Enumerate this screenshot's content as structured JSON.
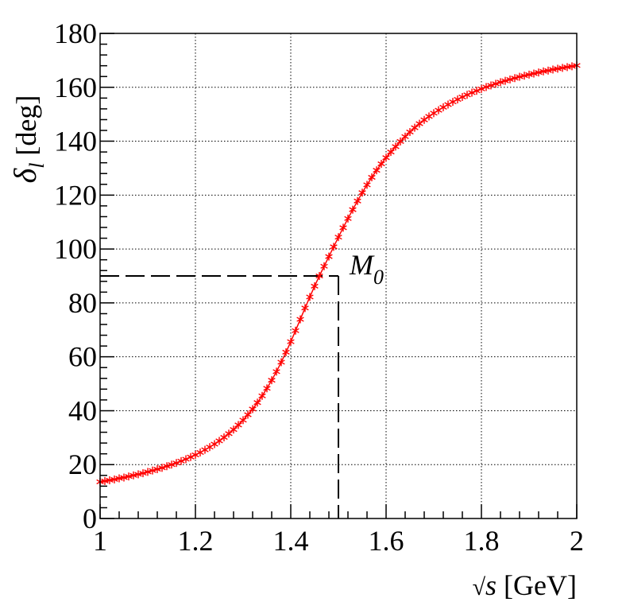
{
  "chart_data": {
    "type": "scatter",
    "title": "",
    "xlabel_parts": {
      "sqrt": "√",
      "var": "s",
      "unit": " [GeV]"
    },
    "ylabel_parts": {
      "delta": "δ",
      "sub": "l",
      "unit": " [deg]"
    },
    "xlim": [
      1,
      2
    ],
    "ylim": [
      0,
      180
    ],
    "x_ticks": [
      1,
      1.2,
      1.4,
      1.6,
      1.8,
      2
    ],
    "x_tick_labels": [
      "1",
      "1.2",
      "1.4",
      "1.6",
      "1.8",
      "2"
    ],
    "y_ticks": [
      0,
      20,
      40,
      60,
      80,
      100,
      120,
      140,
      160,
      180
    ],
    "y_tick_labels": [
      "0",
      "20",
      "40",
      "60",
      "80",
      "100",
      "120",
      "140",
      "160",
      "180"
    ],
    "grid": true,
    "marker": "asterisk",
    "marker_color": "#ff0000",
    "line_color": "#ff0000",
    "series": [
      {
        "x": [
          1.0,
          1.01,
          1.02,
          1.03,
          1.04,
          1.05,
          1.06,
          1.07,
          1.08,
          1.09,
          1.1,
          1.11,
          1.12,
          1.13,
          1.14,
          1.15,
          1.16,
          1.17,
          1.18,
          1.19,
          1.2,
          1.21,
          1.22,
          1.23,
          1.24,
          1.25,
          1.26,
          1.27,
          1.28,
          1.29,
          1.3,
          1.31,
          1.32,
          1.33,
          1.34,
          1.35,
          1.36,
          1.37,
          1.38,
          1.39,
          1.4,
          1.41,
          1.42,
          1.43,
          1.44,
          1.45,
          1.46,
          1.47,
          1.48,
          1.49,
          1.5,
          1.51,
          1.52,
          1.53,
          1.54,
          1.55,
          1.56,
          1.57,
          1.58,
          1.59,
          1.6,
          1.61,
          1.62,
          1.63,
          1.64,
          1.65,
          1.66,
          1.67,
          1.68,
          1.69,
          1.7,
          1.71,
          1.72,
          1.73,
          1.74,
          1.75,
          1.76,
          1.77,
          1.78,
          1.79,
          1.8,
          1.81,
          1.82,
          1.83,
          1.84,
          1.85,
          1.86,
          1.87,
          1.88,
          1.89,
          1.9,
          1.91,
          1.92,
          1.93,
          1.94,
          1.95,
          1.96,
          1.97,
          1.98,
          1.99,
          2.0
        ],
        "y": [
          13.6,
          13.9,
          14.2,
          14.5,
          14.9,
          15.2,
          15.6,
          16.0,
          16.4,
          16.8,
          17.3,
          17.8,
          18.3,
          18.8,
          19.4,
          20.0,
          20.6,
          21.3,
          22.0,
          22.8,
          23.6,
          24.5,
          25.5,
          26.5,
          27.6,
          28.8,
          30.1,
          31.5,
          33.0,
          34.7,
          36.5,
          38.5,
          40.6,
          43.0,
          45.5,
          48.3,
          51.3,
          54.5,
          58.0,
          61.7,
          65.6,
          69.7,
          73.9,
          78.1,
          82.2,
          86.2,
          90.0,
          93.6,
          97.2,
          100.8,
          104.4,
          107.9,
          111.3,
          114.6,
          117.8,
          120.9,
          123.8,
          126.6,
          129.2,
          131.6,
          133.9,
          136.0,
          138.0,
          139.9,
          141.7,
          143.4,
          145.0,
          146.5,
          147.9,
          149.2,
          150.4,
          151.5,
          152.6,
          153.6,
          154.6,
          155.5,
          156.4,
          157.2,
          158.0,
          158.7,
          159.4,
          160.1,
          160.7,
          161.3,
          161.9,
          162.4,
          162.9,
          163.4,
          163.9,
          164.3,
          164.7,
          165.1,
          165.5,
          165.9,
          166.2,
          166.6,
          166.9,
          167.2,
          167.5,
          167.8,
          168.1
        ]
      }
    ],
    "reference": {
      "x": 1.5,
      "y": 90,
      "label": "M",
      "label_sub": "0"
    }
  }
}
